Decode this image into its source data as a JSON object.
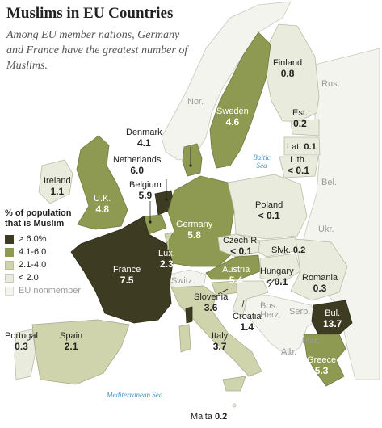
{
  "title": "Muslims in EU Countries",
  "subtitle": "Among EU member nations, Germany and France have the greatest number of Muslims.",
  "colors": {
    "band_over_6": "#3d3c23",
    "band_4_1_6": "#8e9a52",
    "band_2_1_4": "#cfd4ac",
    "band_under_2": "#e9ebdc",
    "nonmember": "#f4f4ef",
    "sea_label": "#4a8fbd"
  },
  "legend": {
    "title": "% of population that is Muslim",
    "items": [
      {
        "label": "> 6.0%",
        "color": "#3d3c23"
      },
      {
        "label": "4.1-6.0",
        "color": "#8e9a52"
      },
      {
        "label": "2.1-4.0",
        "color": "#cfd4ac"
      },
      {
        "label": "< 2.0",
        "color": "#e9ebdc"
      },
      {
        "label": "EU nonmember",
        "color": "#f4f4ef"
      }
    ]
  },
  "countries": {
    "finland": {
      "name": "Finland",
      "value": "0.8"
    },
    "sweden": {
      "name": "Sweden",
      "value": "4.6"
    },
    "estonia": {
      "name": "Est.",
      "value": "0.2"
    },
    "latvia": {
      "name": "Lat.",
      "value": "0.1"
    },
    "lithuania": {
      "name": "Lith.",
      "value": "< 0.1"
    },
    "denmark": {
      "name": "Denmark",
      "value": "4.1"
    },
    "netherlands": {
      "name": "Netherlands",
      "value": "6.0"
    },
    "belgium": {
      "name": "Belgium",
      "value": "5.9"
    },
    "ireland": {
      "name": "Ireland",
      "value": "1.1"
    },
    "uk": {
      "name": "U.K.",
      "value": "4.8"
    },
    "poland": {
      "name": "Poland",
      "value": "< 0.1"
    },
    "germany": {
      "name": "Germany",
      "value": "5.8"
    },
    "czech": {
      "name": "Czech R.",
      "value": "< 0.1"
    },
    "slovakia": {
      "name": "Slvk.",
      "value": "0.2"
    },
    "luxembourg": {
      "name": "Lux.",
      "value": "2.3"
    },
    "france": {
      "name": "France",
      "value": "7.5"
    },
    "austria": {
      "name": "Austria",
      "value": "5.4"
    },
    "hungary": {
      "name": "Hungary",
      "value": "< 0.1"
    },
    "romania": {
      "name": "Romania",
      "value": "0.3"
    },
    "slovenia": {
      "name": "Slovenia",
      "value": "3.6"
    },
    "croatia": {
      "name": "Croatia",
      "value": "1.4"
    },
    "bulgaria": {
      "name": "Bul.",
      "value": "13.7"
    },
    "portugal": {
      "name": "Portugal",
      "value": "0.3"
    },
    "spain": {
      "name": "Spain",
      "value": "2.1"
    },
    "italy": {
      "name": "Italy",
      "value": "3.7"
    },
    "greece": {
      "name": "Greece",
      "value": "5.3"
    },
    "malta": {
      "name": "Malta",
      "value": "0.2"
    }
  },
  "nonmembers": {
    "norway": "Nor.",
    "russia": "Rus.",
    "belarus": "Bel.",
    "ukraine": "Ukr.",
    "switzerland": "Switz.",
    "bosnia": "Bos. Herz.",
    "serbia": "Serb.",
    "macedonia": "Mac.",
    "albania": "Alb."
  },
  "seas": {
    "baltic": "Baltic Sea",
    "mediterranean": "Mediterranean Sea"
  }
}
